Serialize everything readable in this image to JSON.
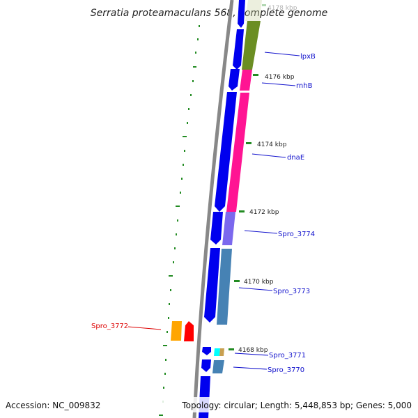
{
  "title": "Serratia proteamaculans 568, complete genome",
  "footer": {
    "accession": "Accession: NC_009832",
    "topology": "Topology: circular; Length: 5,448,853 bp; Genes: 5,000"
  },
  "colors": {
    "backbone": "#888888",
    "cds_forward": "#0000ee",
    "tick": "#228b22",
    "label_forward": "#1010cc",
    "label_reverse": "#dd0000",
    "lpxB": "#6b8e23",
    "rnhB": "#ff1493",
    "dnaE": "#ff1493",
    "spro_3774": "#7b68ee",
    "spro_3773": "#4682b4",
    "spro_3771a": "#00ffff",
    "spro_3771b": "#c8a050",
    "spro_3770": "#4682b4",
    "spro_3772a": "#ffa500",
    "spro_3772b": "#ff0000"
  },
  "kbp_labels": [
    "4178 kbp",
    "4176 kbp",
    "4174 kbp",
    "4172 kbp",
    "4170 kbp",
    "4168 kbp"
  ],
  "gene_labels": [
    "lpxB",
    "rnhB",
    "dnaE",
    "Spro_3774",
    "Spro_3773",
    "Spro_3772",
    "Spro_3771",
    "Spro_3770"
  ]
}
